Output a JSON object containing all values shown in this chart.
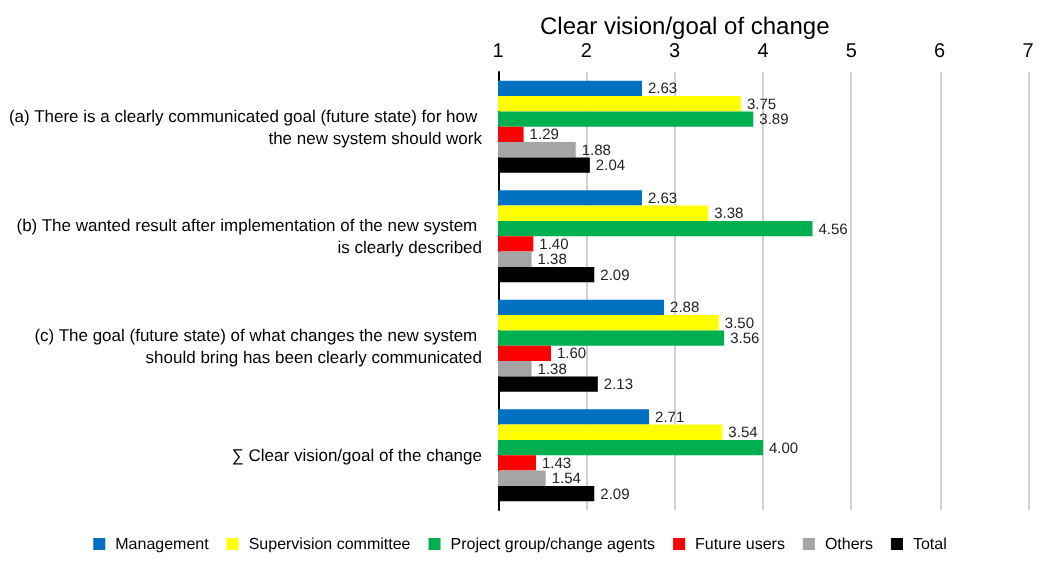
{
  "chart_data": {
    "type": "bar",
    "orientation": "horizontal",
    "title": "Clear vision/goal of change",
    "categories": [
      "(a) There is a clearly communicated goal (future state) for how the new system should work",
      "(b) The wanted result after implementation of the new system is clearly described",
      "(c) The goal (future state) of what changes the new system should bring has been clearly communicated",
      "∑ Clear vision/goal of the change"
    ],
    "series": [
      {
        "name": "Management",
        "color": "#0070c0",
        "values": [
          2.63,
          2.63,
          2.88,
          2.71
        ],
        "value_labels": [
          "2.63",
          "2.63",
          "2.88",
          "2.71"
        ]
      },
      {
        "name": "Supervision committee",
        "color": "#ffff00",
        "values": [
          3.75,
          3.38,
          3.5,
          3.54
        ],
        "value_labels": [
          "3.75",
          "3.38",
          "3.50",
          "3.54"
        ]
      },
      {
        "name": "Project group/change agents",
        "color": "#00b050",
        "values": [
          3.89,
          4.56,
          3.56,
          4.0
        ],
        "value_labels": [
          "3.89",
          "4.56",
          "3.56",
          "4.00"
        ]
      },
      {
        "name": "Future users",
        "color": "#ff0000",
        "values": [
          1.29,
          1.4,
          1.6,
          1.43
        ],
        "value_labels": [
          "1.29",
          "1.40",
          "1.60",
          "1.43"
        ]
      },
      {
        "name": "Others",
        "color": "#a5a5a5",
        "values": [
          1.88,
          1.38,
          1.38,
          1.54
        ],
        "value_labels": [
          "1.88",
          "1.38",
          "1.38",
          "1.54"
        ]
      },
      {
        "name": "Total",
        "color": "#000000",
        "values": [
          2.04,
          2.09,
          2.13,
          2.09
        ],
        "value_labels": [
          "2.04",
          "2.09",
          "2.13",
          "2.09"
        ]
      }
    ],
    "xlim": [
      1,
      7
    ],
    "xticks": [
      1,
      2,
      3,
      4,
      5,
      6,
      7
    ],
    "grid": "x",
    "legend": "bottom"
  }
}
